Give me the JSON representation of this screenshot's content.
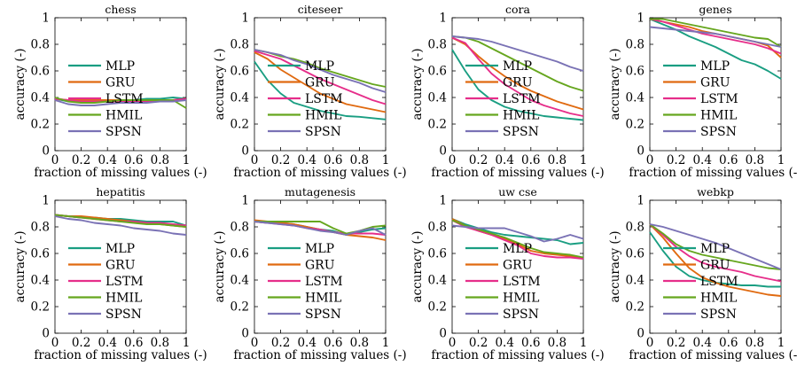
{
  "colors": {
    "MLP": "#1a9e82",
    "GRU": "#e06a10",
    "LSTM": "#e62e8a",
    "HMIL": "#66a61e",
    "SPSN": "#7a72b5"
  },
  "chart_data": [
    {
      "type": "line",
      "title": "chess",
      "xlabel": "fraction of missing values (-)",
      "ylabel": "accuracy (-)",
      "xlim": [
        0,
        1
      ],
      "ylim": [
        0,
        1
      ],
      "xticks": [
        "0",
        "0.2",
        "0.4",
        "0.6",
        "0.8",
        "1"
      ],
      "yticks": [
        "0",
        "0.2",
        "0.4",
        "0.6",
        "0.8",
        "1"
      ],
      "legend": "left",
      "x": [
        0,
        0.1,
        0.2,
        0.3,
        0.4,
        0.5,
        0.6,
        0.7,
        0.8,
        0.9,
        1
      ],
      "series": [
        {
          "name": "MLP",
          "values": [
            0.39,
            0.37,
            0.37,
            0.38,
            0.38,
            0.38,
            0.38,
            0.39,
            0.39,
            0.4,
            0.39
          ]
        },
        {
          "name": "GRU",
          "values": [
            0.39,
            0.38,
            0.38,
            0.38,
            0.38,
            0.38,
            0.37,
            0.37,
            0.37,
            0.38,
            0.39
          ]
        },
        {
          "name": "LSTM",
          "values": [
            0.39,
            0.38,
            0.37,
            0.37,
            0.37,
            0.37,
            0.37,
            0.37,
            0.37,
            0.38,
            0.39
          ]
        },
        {
          "name": "HMIL",
          "values": [
            0.4,
            0.37,
            0.36,
            0.36,
            0.37,
            0.38,
            0.38,
            0.38,
            0.38,
            0.38,
            0.32
          ]
        },
        {
          "name": "SPSN",
          "values": [
            0.38,
            0.35,
            0.34,
            0.34,
            0.35,
            0.36,
            0.36,
            0.36,
            0.37,
            0.37,
            0.38
          ]
        }
      ]
    },
    {
      "type": "line",
      "title": "citeseer",
      "xlabel": "fraction of missing values (-)",
      "ylabel": "accuracy (-)",
      "xlim": [
        0,
        1
      ],
      "ylim": [
        0,
        1
      ],
      "xticks": [
        "0",
        "0.2",
        "0.4",
        "0.6",
        "0.8",
        "1"
      ],
      "yticks": [
        "0",
        "0.2",
        "0.4",
        "0.6",
        "0.8",
        "1"
      ],
      "legend": "left",
      "x": [
        0,
        0.1,
        0.2,
        0.3,
        0.4,
        0.5,
        0.6,
        0.7,
        0.8,
        0.9,
        1
      ],
      "series": [
        {
          "name": "MLP",
          "values": [
            0.67,
            0.53,
            0.43,
            0.36,
            0.33,
            0.3,
            0.28,
            0.26,
            0.255,
            0.245,
            0.235
          ]
        },
        {
          "name": "GRU",
          "values": [
            0.74,
            0.69,
            0.61,
            0.55,
            0.49,
            0.43,
            0.39,
            0.35,
            0.33,
            0.31,
            0.29
          ]
        },
        {
          "name": "LSTM",
          "values": [
            0.75,
            0.72,
            0.69,
            0.64,
            0.59,
            0.54,
            0.5,
            0.46,
            0.42,
            0.38,
            0.35
          ]
        },
        {
          "name": "HMIL",
          "values": [
            0.76,
            0.74,
            0.71,
            0.69,
            0.66,
            0.62,
            0.59,
            0.56,
            0.53,
            0.5,
            0.48
          ]
        },
        {
          "name": "SPSN",
          "values": [
            0.76,
            0.74,
            0.72,
            0.68,
            0.65,
            0.61,
            0.57,
            0.54,
            0.51,
            0.47,
            0.44
          ]
        }
      ]
    },
    {
      "type": "line",
      "title": "cora",
      "xlabel": "fraction of missing values (-)",
      "ylabel": "accuracy (-)",
      "xlim": [
        0,
        1
      ],
      "ylim": [
        0,
        1
      ],
      "xticks": [
        "0",
        "0.2",
        "0.4",
        "0.6",
        "0.8",
        "1"
      ],
      "yticks": [
        "0",
        "0.2",
        "0.4",
        "0.6",
        "0.8",
        "1"
      ],
      "legend": "left",
      "x": [
        0,
        0.1,
        0.2,
        0.3,
        0.4,
        0.5,
        0.6,
        0.7,
        0.8,
        0.9,
        1
      ],
      "series": [
        {
          "name": "MLP",
          "values": [
            0.76,
            0.6,
            0.46,
            0.38,
            0.33,
            0.3,
            0.28,
            0.26,
            0.25,
            0.24,
            0.23
          ]
        },
        {
          "name": "GRU",
          "values": [
            0.85,
            0.8,
            0.71,
            0.63,
            0.56,
            0.5,
            0.45,
            0.41,
            0.37,
            0.34,
            0.31
          ]
        },
        {
          "name": "LSTM",
          "values": [
            0.85,
            0.81,
            0.69,
            0.58,
            0.5,
            0.44,
            0.38,
            0.34,
            0.31,
            0.28,
            0.26
          ]
        },
        {
          "name": "HMIL",
          "values": [
            0.86,
            0.85,
            0.82,
            0.77,
            0.72,
            0.67,
            0.62,
            0.57,
            0.52,
            0.48,
            0.45
          ]
        },
        {
          "name": "SPSN",
          "values": [
            0.86,
            0.85,
            0.84,
            0.82,
            0.79,
            0.76,
            0.73,
            0.7,
            0.67,
            0.63,
            0.6
          ]
        }
      ]
    },
    {
      "type": "line",
      "title": "genes",
      "xlabel": "fraction of missing values (-)",
      "ylabel": "accuracy (-)",
      "xlim": [
        0,
        1
      ],
      "ylim": [
        0,
        1
      ],
      "xticks": [
        "0",
        "0.2",
        "0.4",
        "0.6",
        "0.8",
        "1"
      ],
      "yticks": [
        "0",
        "0.2",
        "0.4",
        "0.6",
        "0.8",
        "1"
      ],
      "legend": "left",
      "x": [
        0,
        0.1,
        0.2,
        0.3,
        0.4,
        0.5,
        0.6,
        0.7,
        0.8,
        0.9,
        1
      ],
      "series": [
        {
          "name": "MLP",
          "values": [
            0.99,
            0.95,
            0.91,
            0.86,
            0.82,
            0.78,
            0.73,
            0.68,
            0.65,
            0.6,
            0.54
          ]
        },
        {
          "name": "GRU",
          "values": [
            0.99,
            0.97,
            0.95,
            0.93,
            0.9,
            0.88,
            0.86,
            0.84,
            0.82,
            0.79,
            0.7
          ]
        },
        {
          "name": "LSTM",
          "values": [
            0.99,
            0.97,
            0.94,
            0.91,
            0.88,
            0.86,
            0.84,
            0.82,
            0.8,
            0.77,
            0.73
          ]
        },
        {
          "name": "HMIL",
          "values": [
            0.99,
            0.99,
            0.97,
            0.95,
            0.93,
            0.91,
            0.89,
            0.87,
            0.85,
            0.84,
            0.78
          ]
        },
        {
          "name": "SPSN",
          "values": [
            0.93,
            0.92,
            0.91,
            0.9,
            0.89,
            0.88,
            0.86,
            0.84,
            0.82,
            0.8,
            0.78
          ]
        }
      ]
    },
    {
      "type": "line",
      "title": "hepatitis",
      "xlabel": "fraction of missing values (-)",
      "ylabel": "accuracy (-)",
      "xlim": [
        0,
        1
      ],
      "ylim": [
        0,
        1
      ],
      "xticks": [
        "0",
        "0.2",
        "0.4",
        "0.6",
        "0.8",
        "1"
      ],
      "yticks": [
        "0",
        "0.2",
        "0.4",
        "0.6",
        "0.8",
        "1"
      ],
      "legend": "left",
      "x": [
        0,
        0.1,
        0.2,
        0.3,
        0.4,
        0.5,
        0.6,
        0.7,
        0.8,
        0.9,
        1
      ],
      "series": [
        {
          "name": "MLP",
          "values": [
            0.89,
            0.88,
            0.87,
            0.87,
            0.86,
            0.86,
            0.85,
            0.84,
            0.84,
            0.84,
            0.81
          ]
        },
        {
          "name": "GRU",
          "values": [
            0.89,
            0.88,
            0.88,
            0.87,
            0.86,
            0.85,
            0.84,
            0.83,
            0.82,
            0.81,
            0.8
          ]
        },
        {
          "name": "LSTM",
          "values": [
            0.89,
            0.88,
            0.87,
            0.86,
            0.85,
            0.84,
            0.84,
            0.83,
            0.83,
            0.82,
            0.81
          ]
        },
        {
          "name": "HMIL",
          "values": [
            0.89,
            0.88,
            0.87,
            0.86,
            0.85,
            0.84,
            0.83,
            0.82,
            0.82,
            0.81,
            0.8
          ]
        },
        {
          "name": "SPSN",
          "values": [
            0.88,
            0.86,
            0.85,
            0.83,
            0.82,
            0.81,
            0.79,
            0.78,
            0.77,
            0.75,
            0.74
          ]
        }
      ]
    },
    {
      "type": "line",
      "title": "mutagenesis",
      "xlabel": "fraction of missing values (-)",
      "ylabel": "accuracy (-)",
      "xlim": [
        0,
        1
      ],
      "ylim": [
        0,
        1
      ],
      "xticks": [
        "0",
        "0.2",
        "0.4",
        "0.6",
        "0.8",
        "1"
      ],
      "yticks": [
        "0",
        "0.2",
        "0.4",
        "0.6",
        "0.8",
        "1"
      ],
      "legend": "left",
      "x": [
        0,
        0.1,
        0.2,
        0.3,
        0.4,
        0.5,
        0.6,
        0.7,
        0.8,
        0.9,
        1
      ],
      "series": [
        {
          "name": "MLP",
          "values": [
            0.84,
            0.83,
            0.83,
            0.82,
            0.8,
            0.78,
            0.77,
            0.74,
            0.76,
            0.78,
            0.79
          ]
        },
        {
          "name": "GRU",
          "values": [
            0.85,
            0.84,
            0.83,
            0.82,
            0.8,
            0.78,
            0.76,
            0.74,
            0.73,
            0.72,
            0.7
          ]
        },
        {
          "name": "LSTM",
          "values": [
            0.84,
            0.83,
            0.82,
            0.81,
            0.79,
            0.78,
            0.76,
            0.75,
            0.75,
            0.75,
            0.74
          ]
        },
        {
          "name": "HMIL",
          "values": [
            0.84,
            0.84,
            0.84,
            0.84,
            0.84,
            0.84,
            0.79,
            0.75,
            0.77,
            0.8,
            0.81
          ]
        },
        {
          "name": "SPSN",
          "values": [
            0.84,
            0.83,
            0.82,
            0.81,
            0.79,
            0.77,
            0.76,
            0.74,
            0.77,
            0.79,
            0.74
          ]
        }
      ]
    },
    {
      "type": "line",
      "title": "uw cse",
      "xlabel": "fraction of missing values (-)",
      "ylabel": "accuracy (-)",
      "xlim": [
        0,
        1
      ],
      "ylim": [
        0,
        1
      ],
      "xticks": [
        "0",
        "0.2",
        "0.4",
        "0.6",
        "0.8",
        "1"
      ],
      "yticks": [
        "0",
        "0.2",
        "0.4",
        "0.6",
        "0.8",
        "1"
      ],
      "legend": "left",
      "x": [
        0,
        0.1,
        0.2,
        0.3,
        0.4,
        0.5,
        0.6,
        0.7,
        0.8,
        0.9,
        1
      ],
      "series": [
        {
          "name": "MLP",
          "values": [
            0.86,
            0.82,
            0.79,
            0.76,
            0.74,
            0.73,
            0.72,
            0.71,
            0.7,
            0.67,
            0.68
          ]
        },
        {
          "name": "GRU",
          "values": [
            0.86,
            0.81,
            0.77,
            0.74,
            0.71,
            0.67,
            0.62,
            0.6,
            0.59,
            0.58,
            0.56
          ]
        },
        {
          "name": "LSTM",
          "values": [
            0.85,
            0.8,
            0.77,
            0.74,
            0.7,
            0.66,
            0.6,
            0.58,
            0.57,
            0.57,
            0.56
          ]
        },
        {
          "name": "HMIL",
          "values": [
            0.85,
            0.81,
            0.78,
            0.75,
            0.72,
            0.68,
            0.64,
            0.61,
            0.6,
            0.59,
            0.57
          ]
        },
        {
          "name": "SPSN",
          "values": [
            0.81,
            0.8,
            0.79,
            0.79,
            0.79,
            0.76,
            0.73,
            0.69,
            0.71,
            0.74,
            0.71
          ]
        }
      ]
    },
    {
      "type": "line",
      "title": "webkp",
      "xlabel": "fraction of missing values (-)",
      "ylabel": "accuracy (-)",
      "xlim": [
        0,
        1
      ],
      "ylim": [
        0,
        1
      ],
      "xticks": [
        "0",
        "0.2",
        "0.4",
        "0.6",
        "0.8",
        "1"
      ],
      "yticks": [
        "0",
        "0.2",
        "0.4",
        "0.6",
        "0.8",
        "1"
      ],
      "legend": "left",
      "x": [
        0,
        0.1,
        0.2,
        0.3,
        0.4,
        0.5,
        0.6,
        0.7,
        0.8,
        0.9,
        1
      ],
      "series": [
        {
          "name": "MLP",
          "values": [
            0.76,
            0.62,
            0.5,
            0.43,
            0.4,
            0.38,
            0.37,
            0.36,
            0.36,
            0.35,
            0.35
          ]
        },
        {
          "name": "GRU",
          "values": [
            0.82,
            0.72,
            0.6,
            0.49,
            0.42,
            0.38,
            0.35,
            0.33,
            0.31,
            0.29,
            0.28
          ]
        },
        {
          "name": "LSTM",
          "values": [
            0.82,
            0.74,
            0.65,
            0.58,
            0.53,
            0.5,
            0.48,
            0.46,
            0.43,
            0.41,
            0.39
          ]
        },
        {
          "name": "HMIL",
          "values": [
            0.82,
            0.75,
            0.67,
            0.62,
            0.59,
            0.57,
            0.55,
            0.53,
            0.51,
            0.49,
            0.48
          ]
        },
        {
          "name": "SPSN",
          "values": [
            0.82,
            0.8,
            0.77,
            0.74,
            0.71,
            0.68,
            0.64,
            0.6,
            0.56,
            0.52,
            0.48
          ]
        }
      ]
    }
  ]
}
